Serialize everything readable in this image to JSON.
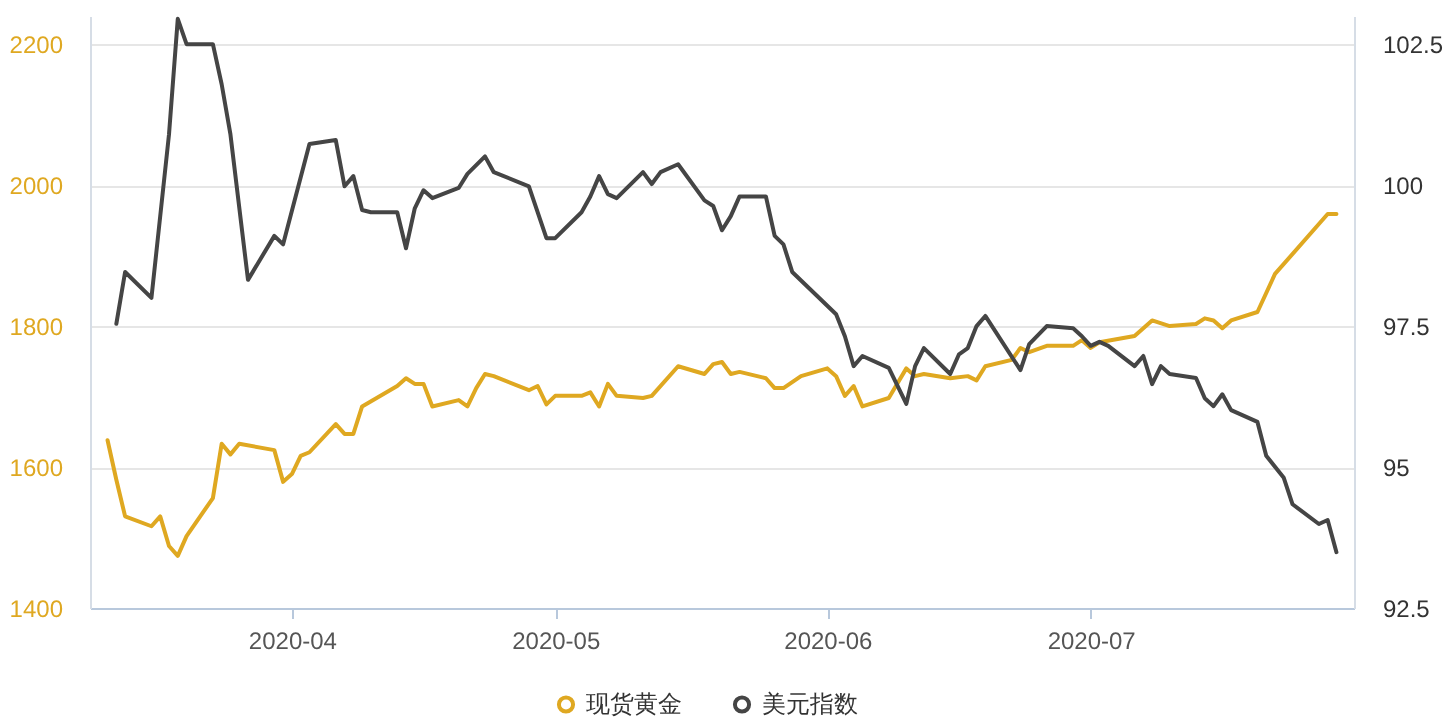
{
  "chart_data": {
    "type": "line",
    "xlim": [
      "2020-03-09",
      "2020-07-31"
    ],
    "xticks": [
      "2020-04",
      "2020-05",
      "2020-06",
      "2020-07"
    ],
    "ylim": [
      1400,
      2240
    ],
    "yticks": [
      1400,
      1600,
      1800,
      2000,
      2200
    ],
    "y2lim": [
      92.5,
      103
    ],
    "y2ticks": [
      92.5,
      95,
      97.5,
      100,
      102.5
    ],
    "grid": "y",
    "legend": "bottom",
    "series": [
      {
        "name": "现货黄金",
        "color": "#dfa821",
        "x": [
          "2020-03-11",
          "2020-03-12",
          "2020-03-13",
          "2020-03-16",
          "2020-03-17",
          "2020-03-18",
          "2020-03-19",
          "2020-03-20",
          "2020-03-23",
          "2020-03-24",
          "2020-03-25",
          "2020-03-26",
          "2020-03-30",
          "2020-03-31",
          "2020-04-01",
          "2020-04-02",
          "2020-04-03",
          "2020-04-06",
          "2020-04-07",
          "2020-04-08",
          "2020-04-09",
          "2020-04-13",
          "2020-04-14",
          "2020-04-15",
          "2020-04-16",
          "2020-04-17",
          "2020-04-20",
          "2020-04-21",
          "2020-04-22",
          "2020-04-23",
          "2020-04-24",
          "2020-04-28",
          "2020-04-29",
          "2020-04-30",
          "2020-05-01",
          "2020-05-04",
          "2020-05-05",
          "2020-05-06",
          "2020-05-07",
          "2020-05-08",
          "2020-05-11",
          "2020-05-12",
          "2020-05-15",
          "2020-05-18",
          "2020-05-19",
          "2020-05-20",
          "2020-05-21",
          "2020-05-22",
          "2020-05-25",
          "2020-05-26",
          "2020-05-27",
          "2020-05-29",
          "2020-06-01",
          "2020-06-02",
          "2020-06-03",
          "2020-06-04",
          "2020-06-05",
          "2020-06-08",
          "2020-06-10",
          "2020-06-11",
          "2020-06-12",
          "2020-06-15",
          "2020-06-17",
          "2020-06-18",
          "2020-06-19",
          "2020-06-22",
          "2020-06-23",
          "2020-06-24",
          "2020-06-26",
          "2020-06-29",
          "2020-06-30",
          "2020-07-01",
          "2020-07-02",
          "2020-07-06",
          "2020-07-08",
          "2020-07-10",
          "2020-07-13",
          "2020-07-14",
          "2020-07-15",
          "2020-07-16",
          "2020-07-17",
          "2020-07-20",
          "2020-07-22",
          "2020-07-28",
          "2020-07-29"
        ],
        "values": [
          1638,
          1582,
          1530,
          1516,
          1530,
          1488,
          1474,
          1502,
          1556,
          1633,
          1618,
          1633,
          1624,
          1579,
          1590,
          1616,
          1621,
          1661,
          1647,
          1647,
          1686,
          1715,
          1726,
          1718,
          1718,
          1686,
          1695,
          1686,
          1712,
          1732,
          1729,
          1709,
          1715,
          1689,
          1701,
          1701,
          1706,
          1686,
          1718,
          1701,
          1698,
          1701,
          1743,
          1732,
          1746,
          1749,
          1732,
          1735,
          1726,
          1712,
          1712,
          1729,
          1740,
          1729,
          1701,
          1715,
          1686,
          1698,
          1740,
          1729,
          1732,
          1726,
          1729,
          1723,
          1743,
          1752,
          1769,
          1763,
          1772,
          1772,
          1780,
          1769,
          1777,
          1786,
          1808,
          1800,
          1803,
          1811,
          1808,
          1797,
          1808,
          1820,
          1874,
          1959,
          1959
        ]
      },
      {
        "name": "美元指数",
        "color": "#454545",
        "axis": "y2",
        "x": [
          "2020-03-12",
          "2020-03-13",
          "2020-03-16",
          "2020-03-18",
          "2020-03-19",
          "2020-03-20",
          "2020-03-23",
          "2020-03-24",
          "2020-03-25",
          "2020-03-27",
          "2020-03-30",
          "2020-03-31",
          "2020-04-03",
          "2020-04-06",
          "2020-04-07",
          "2020-04-08",
          "2020-04-09",
          "2020-04-10",
          "2020-04-13",
          "2020-04-14",
          "2020-04-15",
          "2020-04-16",
          "2020-04-17",
          "2020-04-20",
          "2020-04-21",
          "2020-04-23",
          "2020-04-24",
          "2020-04-28",
          "2020-04-30",
          "2020-05-01",
          "2020-05-04",
          "2020-05-05",
          "2020-05-06",
          "2020-05-07",
          "2020-05-08",
          "2020-05-11",
          "2020-05-12",
          "2020-05-13",
          "2020-05-15",
          "2020-05-18",
          "2020-05-19",
          "2020-05-20",
          "2020-05-21",
          "2020-05-22",
          "2020-05-25",
          "2020-05-26",
          "2020-05-27",
          "2020-05-28",
          "2020-06-02",
          "2020-06-03",
          "2020-06-04",
          "2020-06-05",
          "2020-06-08",
          "2020-06-10",
          "2020-06-11",
          "2020-06-12",
          "2020-06-15",
          "2020-06-16",
          "2020-06-17",
          "2020-06-18",
          "2020-06-19",
          "2020-06-23",
          "2020-06-24",
          "2020-06-26",
          "2020-06-29",
          "2020-06-30",
          "2020-07-01",
          "2020-07-02",
          "2020-07-03",
          "2020-07-06",
          "2020-07-07",
          "2020-07-08",
          "2020-07-09",
          "2020-07-10",
          "2020-07-13",
          "2020-07-14",
          "2020-07-15",
          "2020-07-16",
          "2020-07-17",
          "2020-07-20",
          "2020-07-21",
          "2020-07-23",
          "2020-07-24",
          "2020-07-27",
          "2020-07-28",
          "2020-07-29"
        ],
        "values": [
          97.54,
          98.46,
          98.0,
          100.9,
          102.95,
          102.5,
          102.5,
          101.79,
          100.9,
          98.32,
          99.1,
          98.95,
          100.73,
          100.8,
          99.98,
          100.16,
          99.56,
          99.52,
          99.52,
          98.88,
          99.59,
          99.91,
          99.77,
          99.95,
          100.2,
          100.51,
          100.23,
          99.98,
          99.06,
          99.06,
          99.52,
          99.8,
          100.16,
          99.84,
          99.77,
          100.23,
          100.02,
          100.23,
          100.37,
          99.73,
          99.63,
          99.2,
          99.45,
          99.8,
          99.8,
          99.1,
          98.95,
          98.46,
          97.71,
          97.32,
          96.79,
          96.97,
          96.76,
          96.12,
          96.79,
          97.11,
          96.65,
          97.0,
          97.11,
          97.5,
          97.68,
          96.72,
          97.18,
          97.5,
          97.46,
          97.32,
          97.15,
          97.22,
          97.15,
          96.79,
          96.97,
          96.47,
          96.79,
          96.65,
          96.58,
          96.22,
          96.08,
          96.29,
          96.01,
          95.8,
          95.2,
          94.81,
          94.34,
          93.99,
          94.06,
          93.49
        ]
      }
    ]
  }
}
